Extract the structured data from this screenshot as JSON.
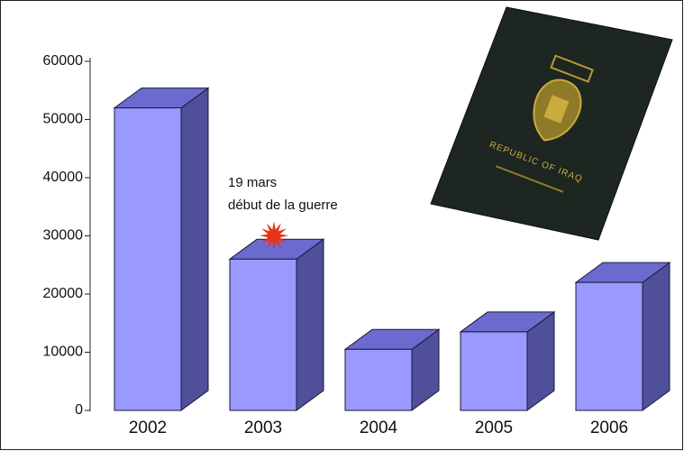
{
  "chart_data": {
    "type": "bar3d",
    "categories": [
      "2002",
      "2003",
      "2004",
      "2005",
      "2006"
    ],
    "values": [
      52000,
      26000,
      10500,
      13500,
      22000
    ],
    "color": "#9999ff",
    "top_color": "#6b6bcf",
    "side_color": "#4f4f9a",
    "ylim": [
      0,
      60000
    ],
    "yticks": [
      0,
      10000,
      20000,
      30000,
      40000,
      50000,
      60000
    ],
    "annotation": {
      "lines": [
        "19 mars",
        "début de la guerre"
      ],
      "category_index": 1,
      "marker_color": "#e8331c"
    },
    "illustration_text": [
      "REPUBLIC OF IRAQ"
    ]
  }
}
